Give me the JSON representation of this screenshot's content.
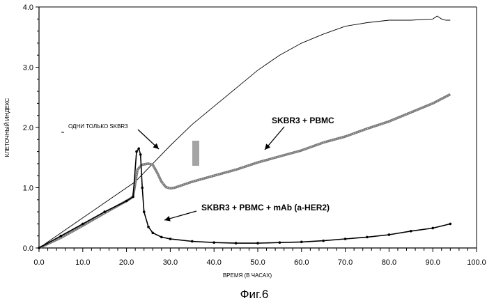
{
  "chart_data": {
    "type": "line",
    "xlabel": "ВРЕМЯ (В ЧАСАХ)",
    "ylabel": "КЛЕТОЧНЫЙ ИНДЕКС",
    "xlim": [
      0,
      100
    ],
    "ylim": [
      0,
      4
    ],
    "x_ticks": [
      "0.0",
      "10.0",
      "20.0",
      "30.0",
      "40.0",
      "50.0",
      "60.0",
      "70.0",
      "80.0",
      "90.0",
      "100.0"
    ],
    "y_ticks": [
      "0.0",
      "1.0",
      "2.0",
      "3.0",
      "4.0"
    ],
    "grid": false,
    "caption": "Фиг.6",
    "series": [
      {
        "name": "ОДНИ ТОЛЬКО SKBR3",
        "color": "#000000",
        "style": "thin",
        "points": [
          [
            0,
            0
          ],
          [
            5,
            0.25
          ],
          [
            10,
            0.5
          ],
          [
            15,
            0.75
          ],
          [
            20,
            1.0
          ],
          [
            22,
            1.1
          ],
          [
            24,
            1.25
          ],
          [
            26,
            1.4
          ],
          [
            30,
            1.7
          ],
          [
            35,
            2.05
          ],
          [
            40,
            2.35
          ],
          [
            45,
            2.65
          ],
          [
            50,
            2.95
          ],
          [
            55,
            3.2
          ],
          [
            60,
            3.4
          ],
          [
            65,
            3.55
          ],
          [
            70,
            3.68
          ],
          [
            75,
            3.74
          ],
          [
            80,
            3.78
          ],
          [
            85,
            3.78
          ],
          [
            90,
            3.8
          ],
          [
            91,
            3.85
          ],
          [
            92,
            3.8
          ],
          [
            93,
            3.78
          ],
          [
            94,
            3.78
          ]
        ]
      },
      {
        "name": "SKBR3 + PBMC",
        "color": "#7a7a7a",
        "style": "thick",
        "points": [
          [
            0,
            0
          ],
          [
            5,
            0.17
          ],
          [
            10,
            0.37
          ],
          [
            15,
            0.58
          ],
          [
            20,
            0.78
          ],
          [
            21.5,
            0.85
          ],
          [
            22.5,
            1.3
          ],
          [
            23.5,
            1.38
          ],
          [
            25,
            1.4
          ],
          [
            26,
            1.38
          ],
          [
            27,
            1.25
          ],
          [
            28,
            1.1
          ],
          [
            29,
            1.01
          ],
          [
            30,
            0.99
          ],
          [
            31,
            1.0
          ],
          [
            35,
            1.1
          ],
          [
            40,
            1.2
          ],
          [
            45,
            1.3
          ],
          [
            50,
            1.42
          ],
          [
            55,
            1.52
          ],
          [
            60,
            1.62
          ],
          [
            65,
            1.75
          ],
          [
            70,
            1.85
          ],
          [
            75,
            1.98
          ],
          [
            80,
            2.1
          ],
          [
            85,
            2.25
          ],
          [
            90,
            2.4
          ],
          [
            94,
            2.55
          ]
        ]
      },
      {
        "name": "SKBR3 + PBMC + mAb (a-HER2)",
        "color": "#000000",
        "style": "markers",
        "points": [
          [
            0,
            0
          ],
          [
            5,
            0.2
          ],
          [
            10,
            0.4
          ],
          [
            15,
            0.6
          ],
          [
            20,
            0.78
          ],
          [
            21.5,
            0.85
          ],
          [
            22.3,
            1.6
          ],
          [
            22.8,
            1.65
          ],
          [
            23.2,
            1.55
          ],
          [
            23.6,
            1.0
          ],
          [
            24,
            0.6
          ],
          [
            25,
            0.35
          ],
          [
            26,
            0.25
          ],
          [
            28,
            0.18
          ],
          [
            30,
            0.15
          ],
          [
            35,
            0.11
          ],
          [
            40,
            0.09
          ],
          [
            45,
            0.08
          ],
          [
            50,
            0.08
          ],
          [
            55,
            0.09
          ],
          [
            60,
            0.1
          ],
          [
            65,
            0.12
          ],
          [
            70,
            0.15
          ],
          [
            75,
            0.18
          ],
          [
            80,
            0.22
          ],
          [
            85,
            0.28
          ],
          [
            90,
            0.33
          ],
          [
            94,
            0.4
          ]
        ]
      }
    ],
    "annotations": [
      {
        "text": "ОДНИ ТОЛЬКО SKBR3",
        "x": 15,
        "y": 2.0
      },
      {
        "text": "SKBR3 + PBMC",
        "x": 60,
        "y": 2.05
      },
      {
        "text": "SKBR3 + PBMC + mAb (a-HER2)",
        "x": 45,
        "y": 0.62
      }
    ]
  }
}
